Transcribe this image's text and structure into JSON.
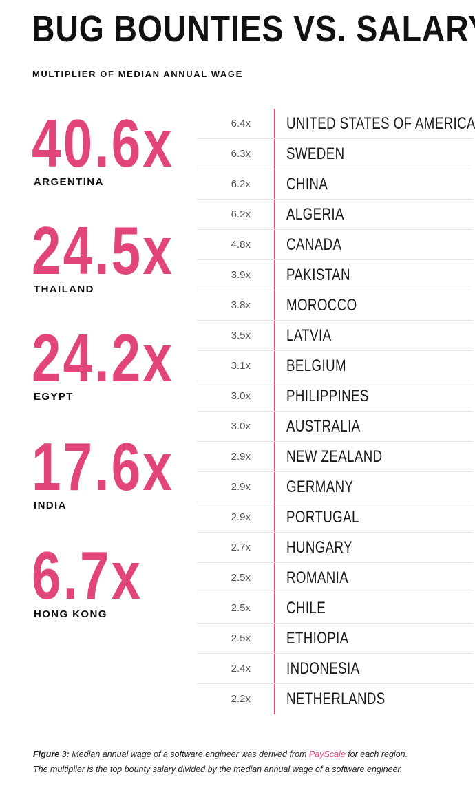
{
  "title": "BUG BOUNTIES VS. SALARY",
  "subtitle": "MULTIPLIER OF MEDIAN ANNUAL WAGE",
  "chart_data": {
    "type": "table",
    "title": "BUG BOUNTIES VS. SALARY",
    "subtitle": "MULTIPLIER OF MEDIAN ANNUAL WAGE",
    "highlights": [
      {
        "value": "40.6x",
        "country": "ARGENTINA"
      },
      {
        "value": "24.5x",
        "country": "THAILAND"
      },
      {
        "value": "24.2x",
        "country": "EGYPT"
      },
      {
        "value": "17.6x",
        "country": "INDIA"
      },
      {
        "value": "6.7x",
        "country": "HONG KONG"
      }
    ],
    "rows": [
      {
        "multiplier": "6.4x",
        "country": "UNITED STATES OF AMERICA"
      },
      {
        "multiplier": "6.3x",
        "country": "SWEDEN"
      },
      {
        "multiplier": "6.2x",
        "country": "CHINA"
      },
      {
        "multiplier": "6.2x",
        "country": "ALGERIA"
      },
      {
        "multiplier": "4.8x",
        "country": "CANADA"
      },
      {
        "multiplier": "3.9x",
        "country": "PAKISTAN"
      },
      {
        "multiplier": "3.8x",
        "country": "MOROCCO"
      },
      {
        "multiplier": "3.5x",
        "country": "LATVIA"
      },
      {
        "multiplier": "3.1x",
        "country": "BELGIUM"
      },
      {
        "multiplier": "3.0x",
        "country": "PHILIPPINES"
      },
      {
        "multiplier": "3.0x",
        "country": "AUSTRALIA"
      },
      {
        "multiplier": "2.9x",
        "country": "NEW ZEALAND"
      },
      {
        "multiplier": "2.9x",
        "country": "GERMANY"
      },
      {
        "multiplier": "2.9x",
        "country": "PORTUGAL"
      },
      {
        "multiplier": "2.7x",
        "country": "HUNGARY"
      },
      {
        "multiplier": "2.5x",
        "country": "ROMANIA"
      },
      {
        "multiplier": "2.5x",
        "country": "CHILE"
      },
      {
        "multiplier": "2.5x",
        "country": "ETHIOPIA"
      },
      {
        "multiplier": "2.4x",
        "country": "INDONESIA"
      },
      {
        "multiplier": "2.2x",
        "country": "NETHERLANDS"
      }
    ]
  },
  "caption": {
    "label": "Figure 3:",
    "line1_before": " Median annual wage of a software engineer was derived from ",
    "link": "PayScale",
    "line1_after": "  for each region.",
    "line2": "The multiplier is the top bounty salary divided by the median annual wage of a software engineer."
  },
  "colors": {
    "accent": "#e2457a",
    "text": "#111111",
    "divider": "#e4e4e4"
  }
}
